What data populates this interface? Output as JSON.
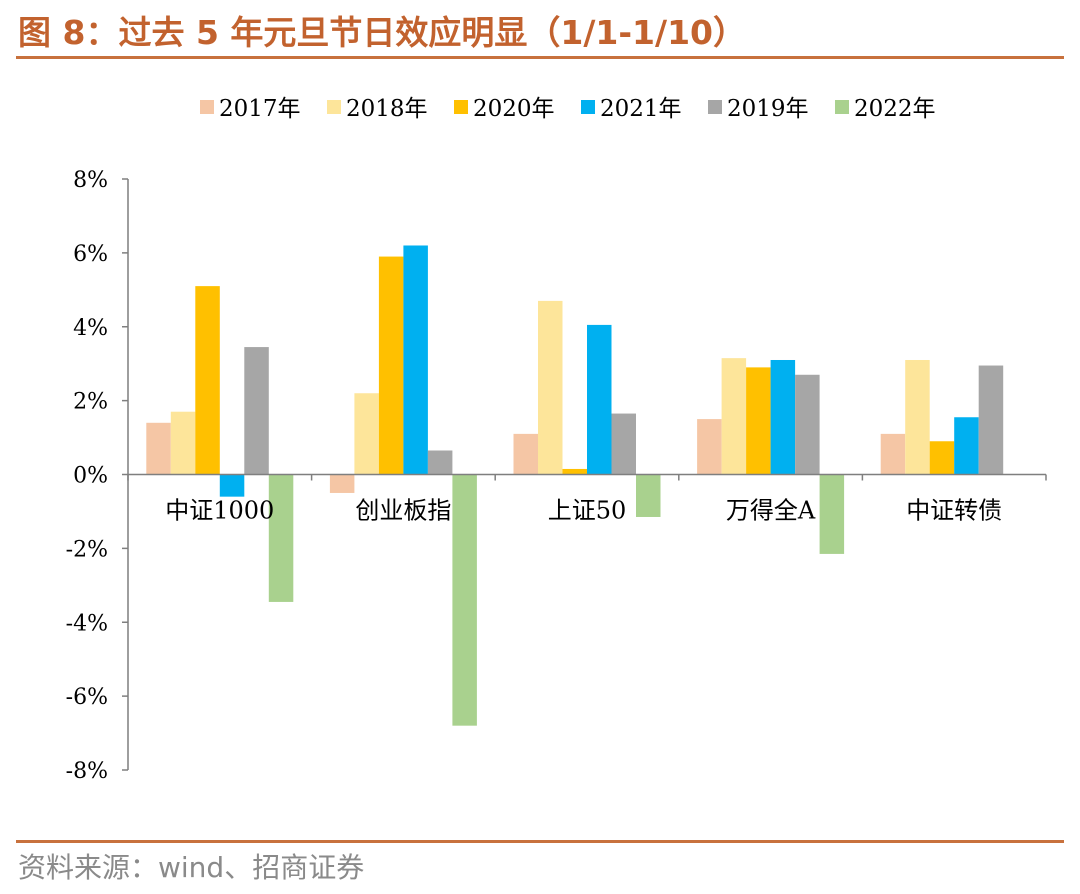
{
  "title": "图 8：过去 5 年元旦节日效应明显（1/1-1/10）",
  "source": "资料来源：wind、招商证券",
  "chart_data": {
    "type": "bar",
    "title": "",
    "xlabel": "",
    "ylabel": "",
    "categories": [
      "中证1000",
      "创业板指",
      "上证50",
      "万得全A",
      "中证转债"
    ],
    "series": [
      {
        "name": "2017年",
        "color": "#f5c6a5",
        "values": [
          1.4,
          -0.5,
          1.1,
          1.5,
          1.1
        ]
      },
      {
        "name": "2018年",
        "color": "#fde59a",
        "values": [
          1.7,
          2.2,
          4.7,
          3.15,
          3.1
        ]
      },
      {
        "name": "2020年",
        "color": "#ffc000",
        "values": [
          5.1,
          5.9,
          0.15,
          2.9,
          0.9
        ]
      },
      {
        "name": "2021年",
        "color": "#00b0f0",
        "values": [
          -0.6,
          6.2,
          4.05,
          3.1,
          1.55
        ]
      },
      {
        "name": "2019年",
        "color": "#a6a6a6",
        "values": [
          3.45,
          0.65,
          1.65,
          2.7,
          2.95
        ]
      },
      {
        "name": "2022年",
        "color": "#a9d18e",
        "values": [
          -3.45,
          -6.8,
          -1.15,
          -2.15,
          0
        ]
      }
    ],
    "ylim": [
      -8,
      8
    ],
    "yticks": [
      -8,
      -6,
      -4,
      -2,
      0,
      2,
      4,
      6,
      8
    ],
    "ytick_labels": [
      "-8%",
      "-6%",
      "-4%",
      "-2%",
      "0%",
      "2%",
      "4%",
      "6%",
      "8%"
    ],
    "legend_position": "top",
    "grid": false
  }
}
